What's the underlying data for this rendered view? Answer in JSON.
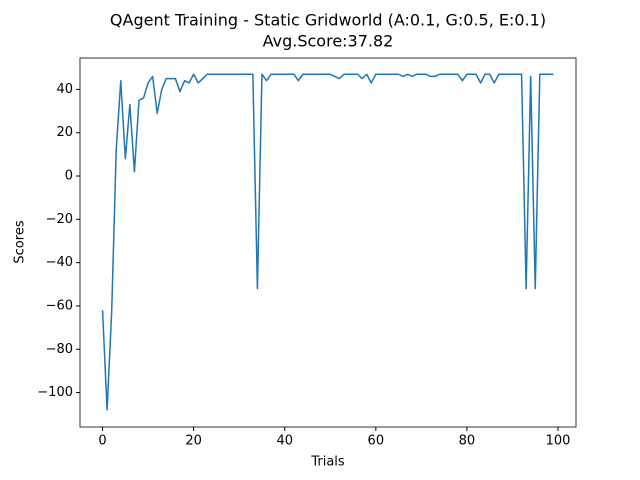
{
  "chart_data": {
    "type": "line",
    "title": "QAgent Training - Static Gridworld (A:0.1, G:0.5, E:0.1)",
    "subtitle": "Avg.Score:37.82",
    "x_label": "Trials",
    "y_label": "Scores",
    "x": [
      0,
      1,
      2,
      3,
      4,
      5,
      6,
      7,
      8,
      9,
      10,
      11,
      12,
      13,
      14,
      15,
      16,
      17,
      18,
      19,
      20,
      21,
      22,
      23,
      24,
      25,
      26,
      27,
      28,
      29,
      30,
      31,
      32,
      33,
      34,
      35,
      36,
      37,
      38,
      39,
      40,
      41,
      42,
      43,
      44,
      45,
      46,
      47,
      48,
      49,
      50,
      51,
      52,
      53,
      54,
      55,
      56,
      57,
      58,
      59,
      60,
      61,
      62,
      63,
      64,
      65,
      66,
      67,
      68,
      69,
      70,
      71,
      72,
      73,
      74,
      75,
      76,
      77,
      78,
      79,
      80,
      81,
      82,
      83,
      84,
      85,
      86,
      87,
      88,
      89,
      90,
      91,
      92,
      93,
      94,
      95,
      96,
      97,
      98,
      99
    ],
    "series": [
      {
        "name": "Scores",
        "color": "#1f77b4",
        "values": [
          -62,
          -108,
          -63,
          12,
          44,
          8,
          33,
          2,
          35,
          36,
          43,
          46,
          29,
          40,
          45,
          45,
          45,
          39,
          44,
          43,
          47,
          43,
          45,
          47,
          47,
          47,
          47,
          47,
          47,
          47,
          47,
          47,
          47,
          47,
          -52,
          47,
          44,
          47,
          47,
          47,
          47,
          47,
          47,
          44,
          47,
          47,
          47,
          47,
          47,
          47,
          47,
          46,
          45,
          47,
          47,
          47,
          47,
          45,
          47,
          43,
          47,
          47,
          47,
          47,
          47,
          47,
          46,
          47,
          46,
          47,
          47,
          47,
          46,
          46,
          47,
          47,
          47,
          47,
          47,
          44,
          47,
          47,
          47,
          43,
          47,
          47,
          43,
          47,
          47,
          47,
          47,
          47,
          47,
          -52,
          46,
          -52,
          47,
          47,
          47,
          47
        ]
      }
    ],
    "xlim": [
      -4.95,
      103.95
    ],
    "ylim": [
      -115.9,
      54.5
    ],
    "xticks": [
      0,
      20,
      40,
      60,
      80,
      100
    ],
    "yticks": [
      {
        "value": -100,
        "label": "−100"
      },
      {
        "value": -80,
        "label": "−80"
      },
      {
        "value": -60,
        "label": "−60"
      },
      {
        "value": -40,
        "label": "−40"
      },
      {
        "value": -20,
        "label": "−20"
      },
      0,
      20,
      40
    ],
    "grid": false
  }
}
